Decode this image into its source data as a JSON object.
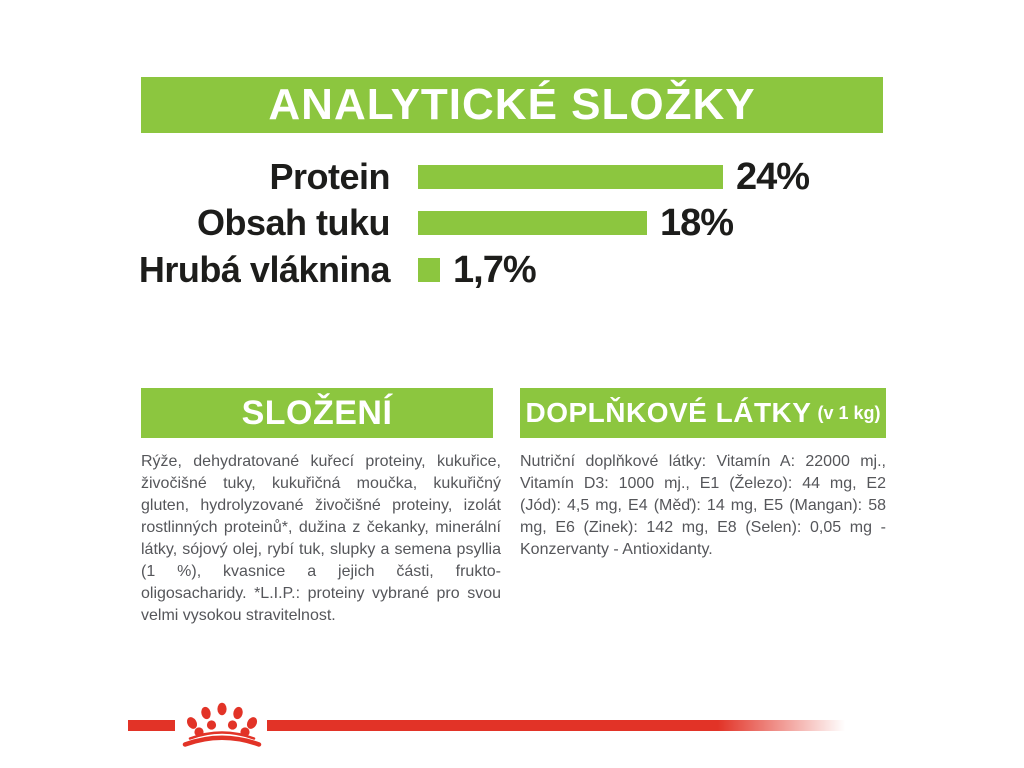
{
  "colors": {
    "accent_green": "#8CC63F",
    "brand_red": "#E23327",
    "heading_text": "#FFFFFF",
    "chart_text": "#1D1D1B",
    "body_text": "#55565A"
  },
  "header": {
    "title": "ANALYTICKÉ SLOŽKY"
  },
  "chart_data": {
    "type": "bar",
    "orientation": "horizontal",
    "categories": [
      "Protein",
      "Obsah tuku",
      "Hrubá vláknina"
    ],
    "values": [
      24,
      18,
      1.7
    ],
    "value_labels": [
      "24%",
      "18%",
      "1,7%"
    ],
    "bar_color": "#8CC63F",
    "xlim": [
      0,
      24
    ],
    "grid": false,
    "legend": false
  },
  "sections": {
    "composition": {
      "title": "SLOŽENÍ",
      "body": "Rýže, dehydratované kuřecí proteiny, kukuřice, živočišné tuky, kukuřičná moučka, kukuřičný gluten, hydrolyzované živočišné proteiny, izolát rostlinných proteinů*, dužina z čekanky, minerální látky, sójový olej, rybí tuk, slupky a semena psyllia (1 %), kvasnice a jejich části, frukto-oligosacharidy. *L.I.P.: proteiny vybrané pro svou velmi vysokou stravitelnost."
    },
    "additives": {
      "title": "DOPLŇKOVÉ LÁTKY",
      "title_suffix": "(v 1 kg)",
      "body": "Nutriční doplňkové látky: Vitamín A: 22000 mj., Vitamín D3: 1000 mj., E1 (Železo): 44 mg, E2 (Jód): 4,5 mg, E4 (Měď): 14 mg, E5 (Mangan): 58 mg, E6 (Zinek): 142 mg, E8 (Selen): 0,05 mg - Konzervanty - Antioxidanty."
    }
  },
  "footer": {
    "logo_icon": "royal-canin-crown-icon"
  }
}
